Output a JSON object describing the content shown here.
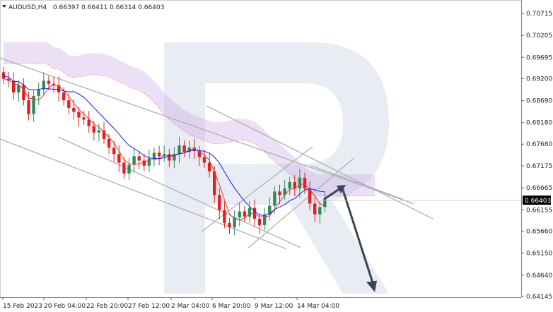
{
  "header": {
    "symbol": "AUDUSD,H4",
    "ohlc": "0.66397 0.66411 0.66314 0.66403"
  },
  "current_price_label": "0.66403",
  "colors": {
    "bull": "#2e8b57",
    "bear": "#e02020",
    "tenkan": "#ff3030",
    "kijun": "#1a1aff",
    "cloud": "#c9a6e8",
    "cloud_edge": "#f4a070",
    "trendline": "#b0b0b0",
    "arrow": "#3a4652",
    "watermark": "#e8ebf2"
  },
  "chart_data": {
    "type": "candlestick",
    "title": "AUDUSD,H4",
    "x_tick_labels": [
      "15 Feb 2023",
      "20 Feb 04:00",
      "22 Feb 20:00",
      "27 Feb 12:00",
      "2 Mar 04:00",
      "6 Mar 20:00",
      "9 Mar 12:00",
      "14 Mar 04:00"
    ],
    "y_tick_labels": [
      "0.70715",
      "0.70205",
      "0.69695",
      "0.69200",
      "0.68690",
      "0.68180",
      "0.67680",
      "0.67175",
      "0.66665",
      "0.66155",
      "0.65660",
      "0.65150",
      "0.64640",
      "0.64145"
    ],
    "ylim": [
      0.6412,
      0.7085
    ],
    "last_price": 0.66403,
    "grid": false,
    "close": [
      0.692,
      0.6915,
      0.6888,
      0.6905,
      0.687,
      0.6838,
      0.688,
      0.6895,
      0.6915,
      0.6908,
      0.6905,
      0.6888,
      0.687,
      0.6852,
      0.6843,
      0.683,
      0.6825,
      0.681,
      0.6795,
      0.68,
      0.678,
      0.676,
      0.6745,
      0.6725,
      0.67,
      0.672,
      0.674,
      0.673,
      0.6718,
      0.6735,
      0.6748,
      0.674,
      0.6745,
      0.673,
      0.6745,
      0.6765,
      0.675,
      0.676,
      0.6752,
      0.6738,
      0.6725,
      0.6705,
      0.665,
      0.6615,
      0.6585,
      0.6575,
      0.6598,
      0.6612,
      0.66,
      0.662,
      0.6595,
      0.658,
      0.6605,
      0.6625,
      0.6658,
      0.665,
      0.6665,
      0.668,
      0.6665,
      0.669,
      0.6665,
      0.663,
      0.6605,
      0.6622,
      0.664
    ],
    "annotations": "Ichimoku cloud; descending trend lines; forecast arrow up to ~0.6670 then down to ~0.6420"
  }
}
